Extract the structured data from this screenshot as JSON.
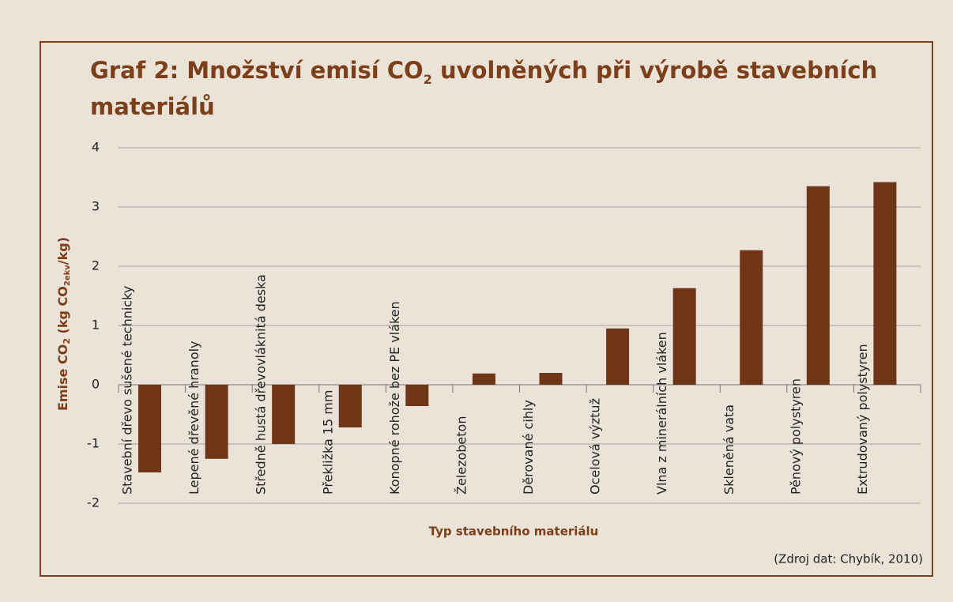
{
  "chart_data": {
    "type": "bar",
    "title": [
      "Graf 2: Množství emisí CO",
      "2",
      " uvolněných při výrobě stavebních materiálů"
    ],
    "ylabel": [
      "Emise CO",
      "2",
      " (kg CO",
      "2ekv",
      "/kg)"
    ],
    "xlabel": "Typ stavebního materiálu",
    "source": "(Zdroj dat: Chybík, 2010)",
    "categories": [
      "Stavební dřevo sušené technicky",
      "Lepené dřevěné hranoly",
      "Středně hustá dřevovláknitá deska",
      "Překližka 15 mm",
      "Konopné rohože bez PE vláken",
      "Železobeton",
      "Děrované cihly",
      "Ocelová výztuž",
      "Vlna z minerálních vláken",
      "Skleněná vata",
      "Pěnový polystyren",
      "Extrudovaný polystyren"
    ],
    "values": [
      -1.48,
      -1.25,
      -1.0,
      -0.72,
      -0.36,
      0.19,
      0.2,
      0.95,
      1.63,
      2.27,
      3.35,
      3.42
    ],
    "color": "#6e3517",
    "ylim": [
      -2,
      4
    ],
    "yticks": [
      -2,
      -1,
      0,
      1,
      2,
      3,
      4
    ],
    "grid": true
  }
}
